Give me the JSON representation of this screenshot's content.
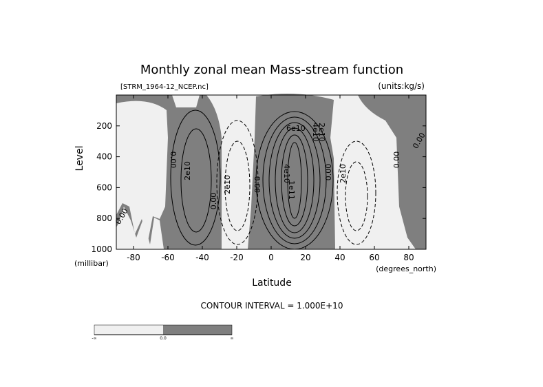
{
  "chart_data": {
    "type": "contour",
    "title": "Monthly zonal mean Mass-stream function",
    "subtitle_left": "[STRM_1964-12_NCEP.nc]",
    "subtitle_right": "(units:kg/s)",
    "xlabel": "Latitude",
    "ylabel": "Level",
    "x_unit": "(degrees_north)",
    "y_unit": "(millibar)",
    "footer": "CONTOUR INTERVAL = 1.000E+10",
    "xlim": [
      -90,
      90
    ],
    "ylim": [
      1000,
      0
    ],
    "xticks": [
      -80,
      -60,
      -40,
      -20,
      0,
      20,
      40,
      60,
      80
    ],
    "yticks": [
      200,
      400,
      600,
      800,
      1000
    ],
    "contour_labels": [
      "0.00",
      "2e10",
      "0.00",
      "2e10",
      "0.00",
      "4e10",
      "6e10",
      "1e11",
      "2e10",
      "4e10",
      "0.00",
      "2e10",
      "0.00",
      "0.00",
      "0.00"
    ],
    "colorbar_labels": [
      "-∞",
      "0.0",
      "∞"
    ],
    "colors": {
      "negative": "#f0f0f0",
      "positive": "#7f7f7f"
    }
  }
}
